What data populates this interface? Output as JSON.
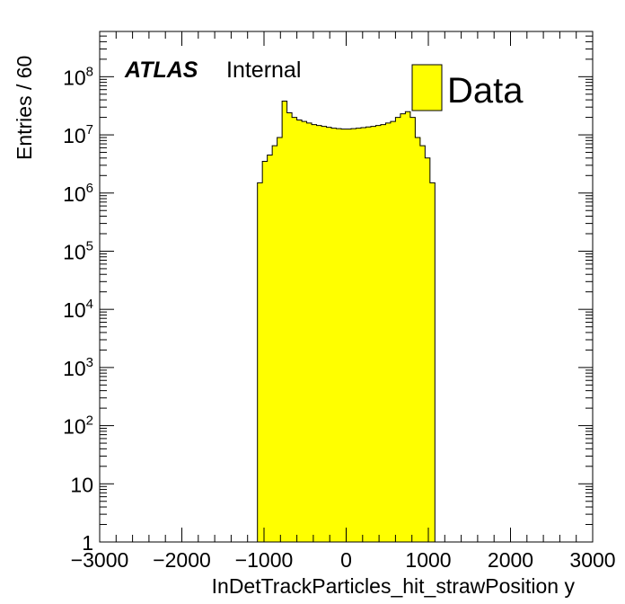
{
  "chart_data": {
    "type": "bar",
    "xlabel": "InDetTrackParticles_hit_strawPosition y",
    "ylabel": "Entries / 60",
    "xlim": [
      -3000,
      3000
    ],
    "ylim": [
      1,
      600000000
    ],
    "y_scale": "log",
    "bin_width": 60,
    "x_tick_labels": [
      "−3000",
      "−2000",
      "−1000",
      "0",
      "1000",
      "2000",
      "3000"
    ],
    "y_tick_labels": [
      {
        "base": "1",
        "exp": ""
      },
      {
        "base": "10",
        "exp": ""
      },
      {
        "base": "10",
        "exp": "2"
      },
      {
        "base": "10",
        "exp": "3"
      },
      {
        "base": "10",
        "exp": "4"
      },
      {
        "base": "10",
        "exp": "5"
      },
      {
        "base": "10",
        "exp": "6"
      },
      {
        "base": "10",
        "exp": "7"
      },
      {
        "base": "10",
        "exp": "8"
      }
    ],
    "grid": false,
    "legend_position": "top-right",
    "series": [
      {
        "name": "Data",
        "color": "#ffff00",
        "edge_color": "#000000",
        "bins": [
          {
            "x": -1080,
            "y": 1500000
          },
          {
            "x": -1020,
            "y": 3500000
          },
          {
            "x": -960,
            "y": 4500000
          },
          {
            "x": -900,
            "y": 6500000
          },
          {
            "x": -840,
            "y": 9000000
          },
          {
            "x": -780,
            "y": 38000000
          },
          {
            "x": -720,
            "y": 24000000
          },
          {
            "x": -660,
            "y": 20000000
          },
          {
            "x": -600,
            "y": 18000000
          },
          {
            "x": -540,
            "y": 17000000
          },
          {
            "x": -480,
            "y": 16000000
          },
          {
            "x": -420,
            "y": 15000000
          },
          {
            "x": -360,
            "y": 14500000
          },
          {
            "x": -300,
            "y": 14000000
          },
          {
            "x": -240,
            "y": 13500000
          },
          {
            "x": -180,
            "y": 13000000
          },
          {
            "x": -120,
            "y": 12800000
          },
          {
            "x": -60,
            "y": 12600000
          },
          {
            "x": 0,
            "y": 12600000
          },
          {
            "x": 60,
            "y": 12800000
          },
          {
            "x": 120,
            "y": 13000000
          },
          {
            "x": 180,
            "y": 13300000
          },
          {
            "x": 240,
            "y": 13700000
          },
          {
            "x": 300,
            "y": 14000000
          },
          {
            "x": 360,
            "y": 14500000
          },
          {
            "x": 420,
            "y": 15000000
          },
          {
            "x": 480,
            "y": 16000000
          },
          {
            "x": 540,
            "y": 17000000
          },
          {
            "x": 600,
            "y": 20000000
          },
          {
            "x": 660,
            "y": 23000000
          },
          {
            "x": 720,
            "y": 25000000
          },
          {
            "x": 780,
            "y": 20000000
          },
          {
            "x": 840,
            "y": 9000000
          },
          {
            "x": 900,
            "y": 6500000
          },
          {
            "x": 960,
            "y": 4000000
          },
          {
            "x": 1020,
            "y": 1500000
          }
        ]
      }
    ]
  },
  "annotations": {
    "experiment": "ATLAS",
    "status": "Internal"
  }
}
